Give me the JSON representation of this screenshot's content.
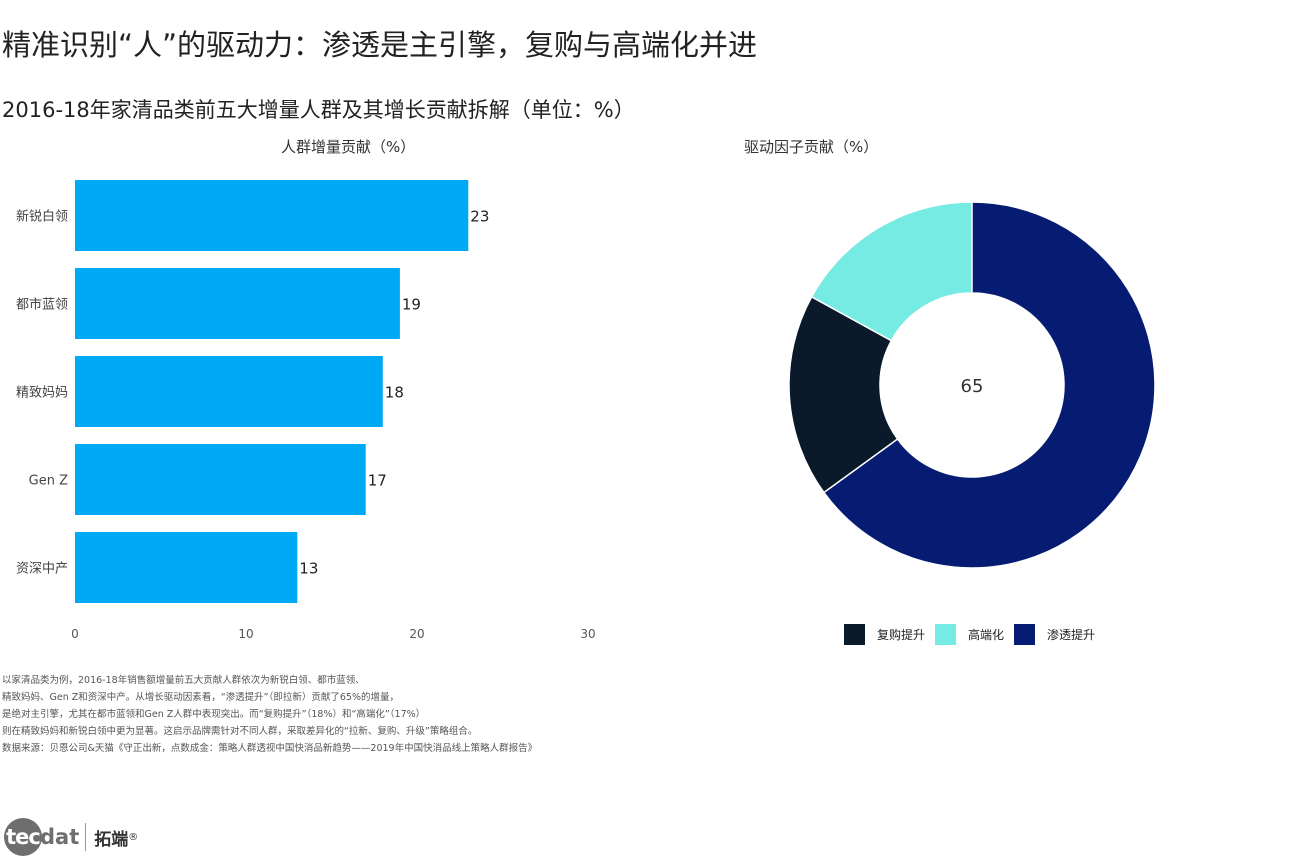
{
  "title": "精准识别“人”的驱动力：渗透是主引擎，复购与高端化并进",
  "subtitle": "2016-18年家清品类前五大增量人群及其增长贡献拆解（单位：%）",
  "chart_data": [
    {
      "type": "bar",
      "orientation": "horizontal",
      "title": "人群增量贡献（%）",
      "categories": [
        "新锐白领",
        "都市蓝领",
        "精致妈妈",
        "Gen Z",
        "资深中产"
      ],
      "values": [
        23,
        19,
        18,
        17,
        13
      ],
      "xticks": [
        "0",
        "10",
        "20",
        "30"
      ],
      "xlim": [
        0,
        30
      ],
      "color": "#00a9f4",
      "grid": false
    },
    {
      "type": "pie",
      "donut": true,
      "title": "驱动因子贡献（%）",
      "center_label": "65",
      "slices": [
        {
          "label": "复购提升",
          "value": 18,
          "color": "#0a1a2b"
        },
        {
          "label": "高端化",
          "value": 17,
          "color": "#76ebe3"
        },
        {
          "label": "渗透提升",
          "value": 65,
          "color": "#061c73"
        }
      ],
      "legend_position": "bottom"
    }
  ],
  "notes": [
    "以家清品类为例，2016-18年销售额增量前五大贡献人群依次为新锐白领、都市蓝领、",
    "精致妈妈、Gen Z和资深中产。从增长驱动因素看，“渗透提升”（即拉新）贡献了65%的增量，",
    "是绝对主引擎，尤其在都市蓝领和Gen Z人群中表现突出。而“复购提升”（18%）和“高端化”（17%）",
    "则在精致妈妈和新锐白领中更为显著。这启示品牌需针对不同人群，采取差异化的“拉新、复购、升级”策略组合。",
    "数据来源：贝恩公司&天猫《守正出新，点数成金：策略人群透视中国快消品新趋势——2019年中国快消品线上策略人群报告》"
  ],
  "logo": {
    "badge": "tec",
    "rest": "dat",
    "cn": "拓端",
    "mark": "®"
  }
}
